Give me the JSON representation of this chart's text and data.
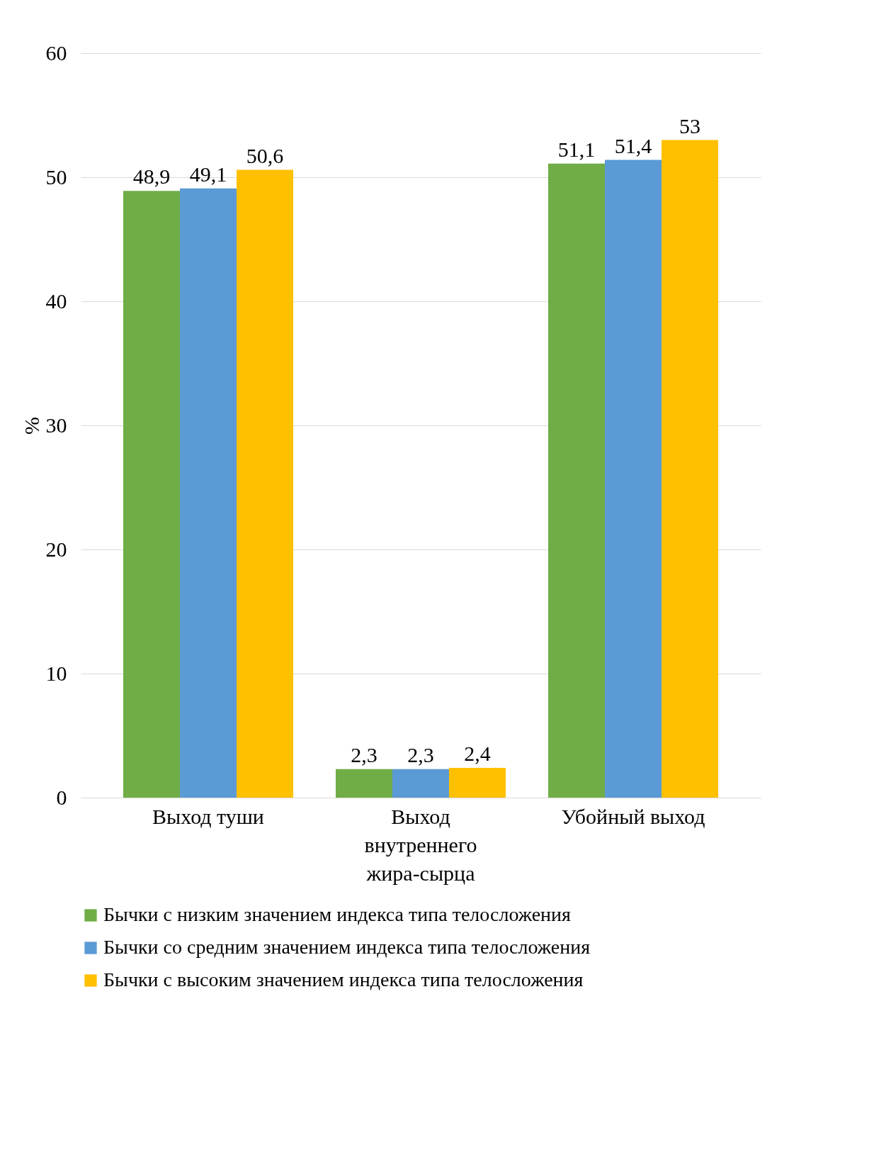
{
  "chart_data": {
    "type": "bar",
    "ylabel": "%",
    "categories": [
      "Выход туши",
      "Выход внутреннего жира-сырца",
      "Убойный выход"
    ],
    "series": [
      {
        "name": "Бычки с низким значением индекса типа телосложения",
        "color": "#70ad47",
        "values": [
          48.9,
          2.3,
          51.1
        ],
        "value_labels": [
          "48,9",
          "2,3",
          "51,1"
        ]
      },
      {
        "name": "Бычки со средним значением индекса типа телосложения",
        "color": "#5b9bd5",
        "values": [
          49.1,
          2.3,
          51.4
        ],
        "value_labels": [
          "49,1",
          "2,3",
          "51,4"
        ]
      },
      {
        "name": "Бычки с высоким значением индекса типа телосложения",
        "color": "#ffc000",
        "values": [
          50.6,
          2.4,
          53
        ],
        "value_labels": [
          "50,6",
          "2,4",
          "53"
        ]
      }
    ],
    "ylim": [
      0,
      60
    ],
    "yticks": [
      0,
      10,
      20,
      30,
      40,
      50,
      60
    ],
    "grid": "y",
    "legend": "bottom"
  }
}
